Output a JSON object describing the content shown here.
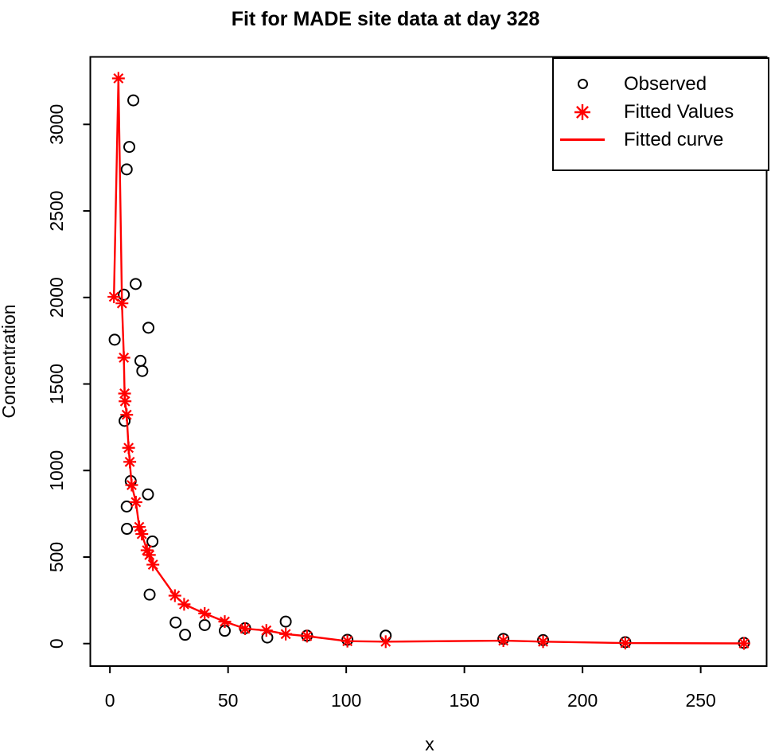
{
  "chart_data": {
    "type": "scatter",
    "title": "Fit for MADE site data at day 328",
    "xlabel": "x",
    "ylabel": "Concentration",
    "xlim": [
      -8.3,
      277.9
    ],
    "ylim": [
      -130,
      3390
    ],
    "x_ticks": [
      0,
      50,
      100,
      150,
      200,
      250
    ],
    "y_ticks": [
      0,
      500,
      1000,
      1500,
      2000,
      2500,
      3000
    ],
    "grid": false,
    "background": "#ffffff",
    "axis_color": "#000000",
    "legend": {
      "position": "top-right",
      "items": [
        {
          "label": "Observed",
          "symbol": "open-circle",
          "color": "#000000"
        },
        {
          "label": "Fitted Values",
          "symbol": "asterisk-8-spoke",
          "color": "#ff0000"
        },
        {
          "label": "Fitted curve",
          "symbol": "line",
          "color": "#ff0000"
        }
      ]
    },
    "series": [
      {
        "name": "Observed",
        "type": "points",
        "marker": "open-circle",
        "color": "#000000",
        "points": [
          [
            2.0,
            1756
          ],
          [
            5.9,
            2016
          ],
          [
            6.2,
            1287
          ],
          [
            7.1,
            2740
          ],
          [
            7.1,
            792
          ],
          [
            7.2,
            663
          ],
          [
            8.2,
            2870
          ],
          [
            8.8,
            939
          ],
          [
            9.9,
            3139
          ],
          [
            10.9,
            2078
          ],
          [
            12.9,
            1634
          ],
          [
            13.7,
            1575
          ],
          [
            16.1,
            862
          ],
          [
            16.3,
            1825
          ],
          [
            16.8,
            283
          ],
          [
            18.0,
            590
          ],
          [
            27.8,
            122
          ],
          [
            31.8,
            51
          ],
          [
            40.1,
            107
          ],
          [
            48.6,
            74
          ],
          [
            57.2,
            89
          ],
          [
            66.6,
            35
          ],
          [
            74.4,
            127
          ],
          [
            83.4,
            46
          ],
          [
            100.5,
            22
          ],
          [
            116.7,
            46
          ],
          [
            166.5,
            27
          ],
          [
            183.3,
            20
          ],
          [
            218.1,
            8
          ],
          [
            268.3,
            4
          ]
        ]
      },
      {
        "name": "Fitted Values",
        "type": "points",
        "marker": "asterisk-8-spoke",
        "color": "#ff0000",
        "points": [
          [
            1.7,
            2004
          ],
          [
            3.6,
            3266
          ],
          [
            5.1,
            1966
          ],
          [
            5.9,
            1652
          ],
          [
            6.2,
            1445
          ],
          [
            6.4,
            1400
          ],
          [
            7.1,
            1322
          ],
          [
            7.9,
            1131
          ],
          [
            8.4,
            1050
          ],
          [
            9.2,
            916
          ],
          [
            11.0,
            817
          ],
          [
            12.4,
            674
          ],
          [
            13.5,
            633
          ],
          [
            15.7,
            539
          ],
          [
            16.7,
            512
          ],
          [
            18.2,
            456
          ],
          [
            27.5,
            277
          ],
          [
            31.4,
            227
          ],
          [
            40.1,
            174
          ],
          [
            48.6,
            127
          ],
          [
            57.2,
            86
          ],
          [
            66.2,
            76
          ],
          [
            74.4,
            55
          ],
          [
            83.4,
            43
          ],
          [
            100.5,
            14
          ],
          [
            116.7,
            11
          ],
          [
            166.5,
            17
          ],
          [
            183.3,
            11
          ],
          [
            218.1,
            3
          ],
          [
            268.3,
            1
          ]
        ]
      },
      {
        "name": "Fitted curve",
        "type": "line",
        "color": "#ff0000",
        "points": [
          [
            1.7,
            2004
          ],
          [
            3.6,
            3266
          ],
          [
            5.1,
            1966
          ],
          [
            5.9,
            1652
          ],
          [
            6.2,
            1445
          ],
          [
            6.4,
            1400
          ],
          [
            7.1,
            1322
          ],
          [
            7.9,
            1131
          ],
          [
            8.4,
            1050
          ],
          [
            9.2,
            916
          ],
          [
            11.0,
            817
          ],
          [
            12.4,
            674
          ],
          [
            13.5,
            633
          ],
          [
            15.7,
            539
          ],
          [
            16.7,
            512
          ],
          [
            18.2,
            456
          ],
          [
            27.5,
            277
          ],
          [
            31.4,
            227
          ],
          [
            40.1,
            174
          ],
          [
            48.6,
            127
          ],
          [
            57.2,
            86
          ],
          [
            66.2,
            76
          ],
          [
            74.4,
            55
          ],
          [
            83.4,
            43
          ],
          [
            100.5,
            14
          ],
          [
            116.7,
            11
          ],
          [
            166.5,
            17
          ],
          [
            183.3,
            11
          ],
          [
            218.1,
            3
          ],
          [
            268.3,
            1
          ]
        ]
      }
    ]
  }
}
